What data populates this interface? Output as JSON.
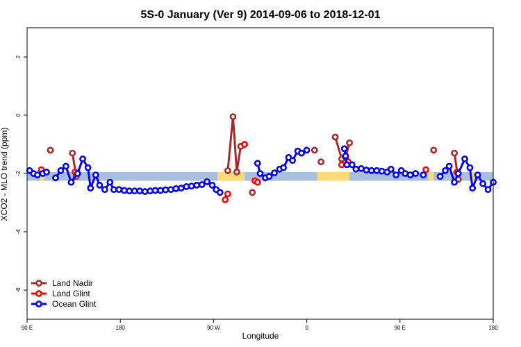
{
  "chart_data": {
    "type": "line",
    "title": "5S-0 January (Ver 9)   2014-09-06 to 2018-12-01",
    "xlabel": "Longitude",
    "ylabel": "XCO2 - MLO trend (ppm)",
    "xlim": [
      90,
      450
    ],
    "ylim": [
      -7,
      3
    ],
    "x_ticks": [
      {
        "value": 90,
        "label": "90 E"
      },
      {
        "value": 162,
        "label": "180"
      },
      {
        "value": 234,
        "label": "90 W"
      },
      {
        "value": 306,
        "label": "0"
      },
      {
        "value": 378,
        "label": "90 E"
      },
      {
        "value": 450,
        "label": "180"
      }
    ],
    "y_ticks": [
      {
        "value": 2,
        "label": "2"
      },
      {
        "value": 0,
        "label": "0"
      },
      {
        "value": -2,
        "label": "-2"
      },
      {
        "value": -4,
        "label": "-4"
      },
      {
        "value": -6,
        "label": "-6"
      }
    ],
    "band": {
      "y_center": -2.1,
      "half_height": 0.15,
      "base_color": "#aabfdd",
      "highlight_color": "#fadb7c",
      "highlight_ranges": [
        [
          100,
          103
        ],
        [
          237,
          258
        ],
        [
          314,
          339
        ],
        [
          400,
          404
        ],
        [
          433,
          436
        ]
      ]
    },
    "legend_position": "bottom-left",
    "series": [
      {
        "name": "Land Nadir",
        "color": "#a52a2a",
        "segments": [
          [
            [
              108,
              -1.2
            ]
          ],
          [
            [
              125,
              -1.3
            ],
            [
              128,
              -2.1
            ]
          ],
          [
            [
              245,
              -1.9
            ],
            [
              249,
              -0.05
            ],
            [
              252,
              -1.95
            ],
            [
              255,
              -1.07
            ]
          ],
          [
            [
              264,
              -2.65
            ]
          ],
          [
            [
              317,
              -1.6
            ]
          ],
          [
            [
              312,
              -1.2
            ]
          ],
          [
            [
              328,
              -0.75
            ],
            [
              333,
              -1.5
            ],
            [
              336,
              -1.45
            ],
            [
              339,
              -0.95
            ]
          ],
          [
            [
              404,
              -1.2
            ]
          ],
          [
            [
              420,
              -1.3
            ],
            [
              423,
              -2.2
            ]
          ]
        ]
      },
      {
        "name": "Land Glint",
        "color": "#ff0000",
        "segmenten": [],
        "segments": [
          [
            [
              101,
              -1.87
            ]
          ],
          [
            [
              127,
              -1.95
            ]
          ],
          [
            [
              243,
              -2.9
            ],
            [
              245,
              -2.7
            ]
          ],
          [
            [
              258,
              -1.0
            ]
          ],
          [
            [
              266,
              -2.25
            ]
          ],
          [
            [
              268,
              -2.3
            ]
          ],
          [
            [
              333,
              -1.7
            ]
          ],
          [
            [
              338,
              -1.6
            ]
          ],
          [
            [
              398,
              -1.87
            ]
          ],
          [
            [
              422,
              -1.95
            ]
          ]
        ]
      },
      {
        "name": "Ocean Glint",
        "color": "#0000ee",
        "segments": [
          [
            [
              92,
              -1.9
            ],
            [
              95,
              -2.0
            ],
            [
              98,
              -2.05
            ],
            [
              102,
              -2.0
            ],
            [
              105,
              -1.95
            ]
          ],
          [
            [
              112,
              -2.15
            ],
            [
              116,
              -1.9
            ],
            [
              120,
              -1.75
            ],
            [
              124,
              -2.3
            ],
            [
              129,
              -2.0
            ],
            [
              133,
              -1.5
            ],
            [
              137,
              -1.8
            ],
            [
              139,
              -2.5
            ],
            [
              143,
              -2.05
            ],
            [
              146,
              -2.4
            ],
            [
              150,
              -2.55
            ],
            [
              154,
              -2.3
            ],
            [
              157,
              -2.55
            ],
            [
              161,
              -2.55
            ],
            [
              165,
              -2.58
            ],
            [
              169,
              -2.6
            ],
            [
              173,
              -2.6
            ],
            [
              177,
              -2.6
            ],
            [
              181,
              -2.62
            ],
            [
              185,
              -2.6
            ],
            [
              189,
              -2.58
            ],
            [
              193,
              -2.58
            ],
            [
              197,
              -2.56
            ],
            [
              201,
              -2.55
            ],
            [
              205,
              -2.52
            ],
            [
              209,
              -2.5
            ],
            [
              213,
              -2.45
            ],
            [
              217,
              -2.43
            ],
            [
              221,
              -2.4
            ],
            [
              225,
              -2.38
            ],
            [
              229,
              -2.28
            ],
            [
              233,
              -2.4
            ],
            [
              236,
              -2.55
            ],
            [
              239,
              -2.65
            ]
          ],
          [
            [
              268,
              -1.65
            ],
            [
              270,
              -2.0
            ],
            [
              274,
              -2.15
            ],
            [
              277,
              -2.1
            ],
            [
              281,
              -1.98
            ],
            [
              285,
              -1.85
            ],
            [
              288,
              -1.8
            ],
            [
              292,
              -1.45
            ],
            [
              295,
              -1.55
            ],
            [
              299,
              -1.23
            ],
            [
              302,
              -1.3
            ],
            [
              306,
              -1.2
            ]
          ],
          [
            [
              335,
              -1.15
            ],
            [
              336,
              -1.4
            ],
            [
              337,
              -1.7
            ],
            [
              341,
              -1.7
            ],
            [
              344,
              -1.85
            ],
            [
              348,
              -1.83
            ],
            [
              352,
              -1.88
            ],
            [
              356,
              -1.9
            ],
            [
              360,
              -1.9
            ],
            [
              364,
              -1.92
            ],
            [
              368,
              -1.95
            ],
            [
              371,
              -1.85
            ],
            [
              375,
              -2.05
            ],
            [
              379,
              -1.9
            ],
            [
              382,
              -2.0
            ],
            [
              386,
              -2.05
            ]
          ],
          [
            [
              390,
              -2.0
            ]
          ],
          [
            [
              396,
              -2.05
            ]
          ],
          [
            [
              409,
              -2.1
            ],
            [
              413,
              -1.9
            ],
            [
              416,
              -1.75
            ],
            [
              420,
              -2.3
            ],
            [
              423,
              -2.0
            ],
            [
              428,
              -1.5
            ],
            [
              432,
              -1.8
            ],
            [
              434,
              -2.5
            ],
            [
              438,
              -2.05
            ],
            [
              442,
              -2.35
            ],
            [
              446,
              -2.55
            ],
            [
              450,
              -2.3
            ]
          ]
        ]
      }
    ]
  }
}
